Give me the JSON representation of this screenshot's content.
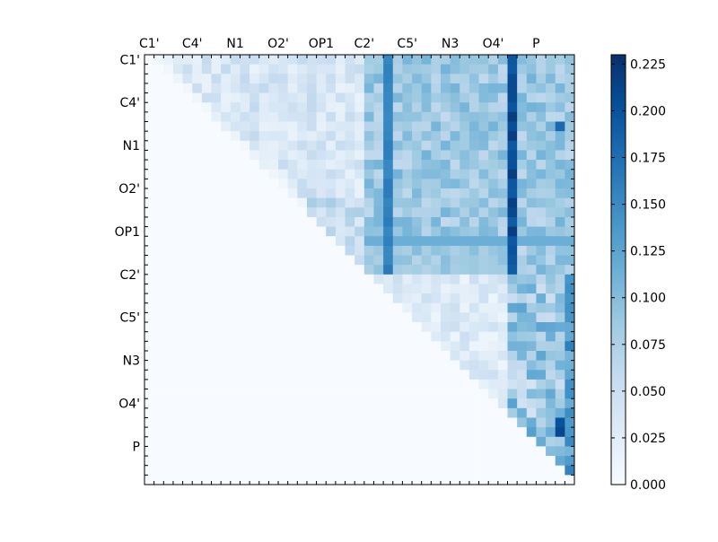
{
  "chart_data": {
    "type": "heatmap",
    "title": "",
    "xlabel": "",
    "ylabel": "",
    "x_tick_labels": [
      "C1'",
      "C4'",
      "N1",
      "O2'",
      "OP1",
      "C2'",
      "C5'",
      "N3",
      "O4'",
      "P"
    ],
    "y_tick_labels": [
      "C1'",
      "C4'",
      "N1",
      "O2'",
      "OP1",
      "C2'",
      "C5'",
      "N3",
      "O4'",
      "P"
    ],
    "n_rows": 45,
    "n_cols": 45,
    "colormap": "Blues",
    "vmin": 0.0,
    "vmax": 0.23,
    "colorbar": {
      "ticks": [
        "0.000",
        "0.025",
        "0.050",
        "0.075",
        "0.100",
        "0.125",
        "0.150",
        "0.175",
        "0.200",
        "0.225"
      ],
      "tick_values": [
        0.0,
        0.025,
        0.05,
        0.075,
        0.1,
        0.125,
        0.15,
        0.175,
        0.2,
        0.225
      ]
    },
    "note_values": "upper-triangular pairwise matrix; values estimated from color",
    "key_columns": [
      {
        "col_label": "C2'",
        "approx_value": 0.16
      },
      {
        "col_label": "O4'",
        "approx_value": 0.21
      }
    ],
    "bright_cells": [
      {
        "row": 7,
        "col": 43,
        "value": 0.18
      },
      {
        "row": 38,
        "col": 43,
        "value": 0.2
      },
      {
        "row": 39,
        "col": 43,
        "value": 0.21
      },
      {
        "row": 42,
        "col": 43,
        "value": 0.12
      },
      {
        "row": 25,
        "col": 44,
        "value": 0.14
      }
    ]
  },
  "colors": {
    "cmap_stops": [
      "#f7fbff",
      "#deebf7",
      "#c6dbef",
      "#9ecae1",
      "#6baed6",
      "#4292c6",
      "#2171b5",
      "#08519c",
      "#08306b"
    ]
  }
}
